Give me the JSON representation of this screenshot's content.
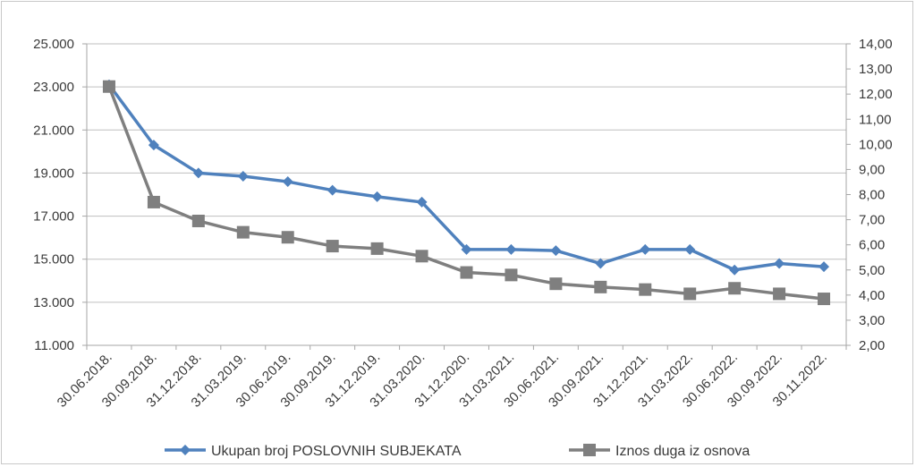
{
  "chart_data": {
    "type": "line",
    "categories": [
      "30.06.2018.",
      "30.09.2018.",
      "31.12.2018.",
      "31.03.2019.",
      "30.06.2019.",
      "30.09.2019.",
      "31.12.2019.",
      "31.03.2020.",
      "31.12.2020.",
      "31.03.2021.",
      "30.06.2021.",
      "30.09.2021.",
      "31.12.2021.",
      "31.03.2022.",
      "30.06.2022.",
      "30.09.2022.",
      "30.11.2022."
    ],
    "left_axis": {
      "range": [
        11000,
        25000
      ],
      "ticks": [
        11000,
        13000,
        15000,
        17000,
        19000,
        21000,
        23000,
        25000
      ],
      "tick_labels": [
        "11.000",
        "13.000",
        "15.000",
        "17.000",
        "19.000",
        "21.000",
        "23.000",
        "25.000"
      ]
    },
    "right_axis": {
      "range": [
        2,
        14
      ],
      "ticks": [
        2,
        3,
        4,
        5,
        6,
        7,
        8,
        9,
        10,
        11,
        12,
        13,
        14
      ],
      "tick_labels": [
        "2,00",
        "3,00",
        "4,00",
        "5,00",
        "6,00",
        "7,00",
        "8,00",
        "9,00",
        "10,00",
        "11,00",
        "12,00",
        "13,00",
        "14,00"
      ]
    },
    "series": [
      {
        "name": "Ukupan broj POSLOVNIH SUBJEKATA",
        "axis": "left",
        "color": "#4f81bd",
        "marker": "diamond",
        "values": [
          23100,
          20300,
          19000,
          18850,
          18600,
          18200,
          17900,
          17650,
          15450,
          15450,
          15400,
          14800,
          15450,
          15450,
          14500,
          14800,
          14650
        ]
      },
      {
        "name": "Iznos duga iz osnova",
        "axis": "right",
        "color": "#7f7f7f",
        "marker": "square",
        "values": [
          12.3,
          7.7,
          6.95,
          6.5,
          6.3,
          5.95,
          5.85,
          5.55,
          4.9,
          4.8,
          4.45,
          4.32,
          4.22,
          4.05,
          4.27,
          4.05,
          3.85
        ]
      }
    ],
    "grid": true,
    "legend": "bottom",
    "gridline_color": "#bfbfbf"
  }
}
